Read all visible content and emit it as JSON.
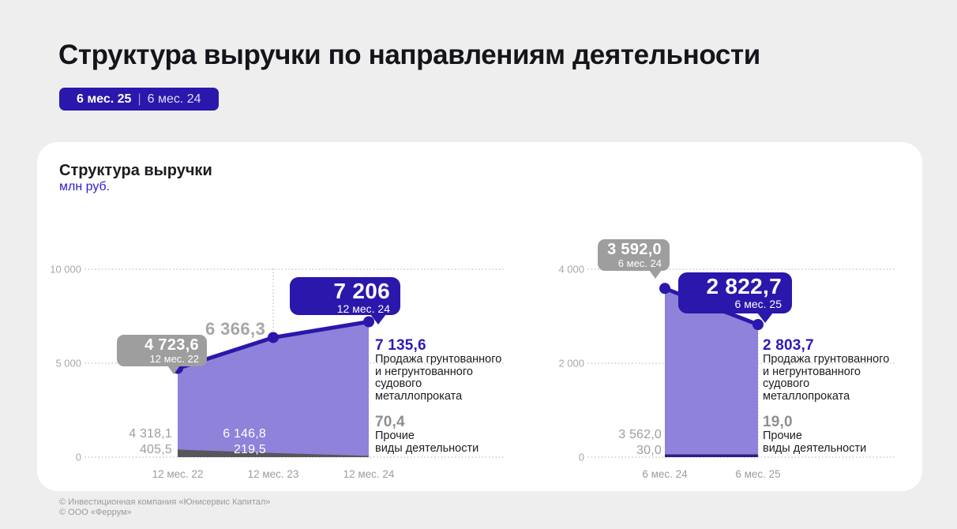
{
  "header": {
    "title": "Структура выручки по направлениям деятельности",
    "badge": {
      "current": "6 мес. 25",
      "separator": "|",
      "previous": "6 мес. 24"
    }
  },
  "card": {
    "title": "Структура выручки",
    "unit": "млн руб."
  },
  "colors": {
    "accent_indigo": "#2a17ab",
    "area_purple": "#8f82da",
    "strip_gray": "#57565b",
    "strip_indigo": "#2c1d85",
    "callout_gray": "#9e9e9e",
    "value_blue_text": "#2c1ab8",
    "unit_blue_text": "#2b1ed2",
    "background": "#eeeeee",
    "card_background": "#ffffff"
  },
  "left_annotations": {
    "callout_first": {
      "value": "4 723,6",
      "period": "12 мес. 22"
    },
    "mid_total": "6 366,3",
    "callout_last": {
      "value": "7 206",
      "period": "12 мес. 24"
    },
    "first_point": {
      "main": "4 318,1",
      "other": "405,5"
    },
    "mid_point": {
      "main": "6 146,8",
      "other": "219,5"
    },
    "last_main_value": "7 135,6",
    "main_label_lines": [
      "Продажа грунтованного",
      "и негрунтованного",
      "судового",
      "металлопроката"
    ],
    "last_other_value": "70,4",
    "other_label_lines": [
      "Прочие",
      "виды деятельности"
    ]
  },
  "right_annotations": {
    "callout_first": {
      "value": "3 592,0",
      "period": "6 мес. 24"
    },
    "callout_last": {
      "value": "2 822,7",
      "period": "6 мес. 25"
    },
    "first_point": {
      "main": "3 562,0",
      "other": "30,0"
    },
    "last_main_value": "2 803,7",
    "main_label_lines": [
      "Продажа грунтованного",
      "и негрунтованного",
      "судового",
      "металлопроката"
    ],
    "last_other_value": "19,0",
    "other_label_lines": [
      "Прочие",
      "виды деятельности"
    ]
  },
  "footer": {
    "lines": [
      "© Инвестиционная компания «Юнисервис Капитал»",
      "© ООО «Феррум»"
    ]
  },
  "chart_data": [
    {
      "type": "area",
      "name": "revenue-structure-annual",
      "title": "Структура выручки",
      "unit": "млн руб.",
      "categories": [
        "12 мес. 22",
        "12 мес. 23",
        "12 мес. 24"
      ],
      "series": [
        {
          "name": "Продажа грунтованного и негрунтованного судового металлопроката",
          "values": [
            4318.1,
            6146.8,
            7135.6
          ]
        },
        {
          "name": "Прочие виды деятельности",
          "values": [
            405.5,
            219.5,
            70.4
          ]
        }
      ],
      "totals": [
        4723.6,
        6366.3,
        7206
      ],
      "ylim": [
        0,
        10000
      ],
      "yticks": [
        0,
        5000,
        10000
      ],
      "ytick_labels": [
        "0",
        "5 000",
        "10 000"
      ],
      "grid": "dotted",
      "legend_position": "right",
      "color_line": "#2a17ab",
      "color_area": "#8f82da",
      "color_other": "#57565b",
      "color_grid": "#cbcbcb",
      "color_axis_text": "#a8a8a8",
      "color_xaxis_text": "#9c9c9c"
    },
    {
      "type": "area",
      "name": "revenue-structure-halfyear",
      "title": "Структура выручки",
      "unit": "млн руб.",
      "categories": [
        "6 мес. 24",
        "6 мес. 25"
      ],
      "series": [
        {
          "name": "Продажа грунтованного и негрунтованного судового металлопроката",
          "values": [
            3562.0,
            2803.7
          ]
        },
        {
          "name": "Прочие виды деятельности",
          "values": [
            30.0,
            19.0
          ]
        }
      ],
      "totals": [
        3592.0,
        2822.7
      ],
      "ylim": [
        0,
        4000
      ],
      "yticks": [
        0,
        2000,
        4000
      ],
      "ytick_labels": [
        "0",
        "2 000",
        "4 000"
      ],
      "grid": "dotted",
      "legend_position": "right",
      "color_line": "#2a17ab",
      "color_area": "#8f82da",
      "color_other": "#2c1d85",
      "color_grid": "#cbcbcb",
      "color_axis_text": "#a8a8a8",
      "color_xaxis_text": "#9c9c9c"
    }
  ]
}
